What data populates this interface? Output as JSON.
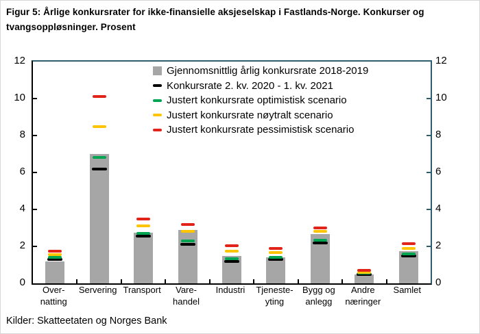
{
  "title": "Figur 5: Årlige konkursrater for ikke-finansielle aksjeselskap i Fastlands-Norge. Konkurser og tvangsoppløsninger. Prosent",
  "source": "Kilder: Skatteetaten og Norges Bank",
  "colors": {
    "bar": "#a6a6a6",
    "black": "#000000",
    "green": "#00a551",
    "yellow": "#ffc400",
    "red": "#e2231a",
    "axis_left": "#000000",
    "axis_right": "#2d5c6c"
  },
  "chart_data": {
    "type": "bar",
    "title": "Årlige konkursrater for ikke-finansielle aksjeselskap i Fastlands-Norge",
    "ylabel": "Prosent",
    "ylim": [
      0,
      12
    ],
    "yticks": [
      0,
      2,
      4,
      6,
      8,
      10,
      12
    ],
    "grid": false,
    "legend_position": "top-inside",
    "categories": [
      "Overnatting",
      "Servering",
      "Transport",
      "Varehandel",
      "Industri",
      "Tjenesteyting",
      "Bygg og anlegg",
      "Andre næringer",
      "Samlet"
    ],
    "category_lines": [
      [
        "Over-",
        "natting"
      ],
      [
        "Servering"
      ],
      [
        "Transport"
      ],
      [
        "Vare-",
        "handel"
      ],
      [
        "Industri"
      ],
      [
        "Tjeneste-",
        "yting"
      ],
      [
        "Bygg og",
        "anlegg"
      ],
      [
        "Andre",
        "næringer"
      ],
      [
        "Samlet"
      ]
    ],
    "series": [
      {
        "name": "Gjennomsnittlig årlig konkursrate 2018-2019",
        "style": "bar",
        "color_key": "bar",
        "values": [
          1.2,
          7.0,
          2.75,
          2.9,
          1.5,
          1.4,
          2.65,
          0.5,
          1.75
        ]
      },
      {
        "name": "Konkursrate 2. kv. 2020 - 1. kv. 2021",
        "style": "dash",
        "color_key": "black",
        "values": [
          1.3,
          6.2,
          2.55,
          2.1,
          1.2,
          1.3,
          2.2,
          0.5,
          1.5
        ]
      },
      {
        "name": "Justert konkursrate optimistisk scenario",
        "style": "dash",
        "color_key": "green",
        "values": [
          1.4,
          6.8,
          2.7,
          2.3,
          1.35,
          1.4,
          2.35,
          0.55,
          1.6
        ]
      },
      {
        "name": "Justert konkursrate nøytralt scenario",
        "style": "dash",
        "color_key": "yellow",
        "values": [
          1.55,
          8.5,
          3.1,
          2.8,
          1.75,
          1.65,
          2.8,
          0.6,
          1.9
        ]
      },
      {
        "name": "Justert konkursrate pessimistisk scenario",
        "style": "dash",
        "color_key": "red",
        "values": [
          1.75,
          10.1,
          3.5,
          3.2,
          2.05,
          1.9,
          3.0,
          0.7,
          2.15
        ]
      }
    ]
  }
}
